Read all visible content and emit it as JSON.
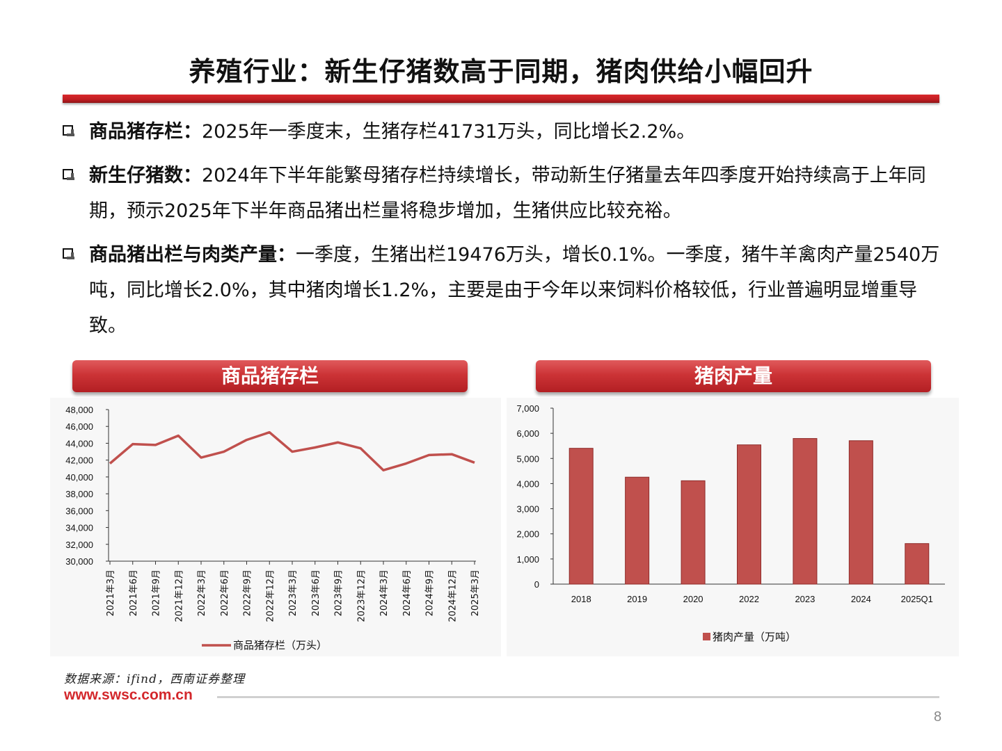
{
  "page": {
    "title": "养殖行业：新生仔猪数高于同期，猪肉供给小幅回升",
    "page_number": "8"
  },
  "bullets": [
    {
      "label": "商品猪存栏：",
      "text": "2025年一季度末，生猪存栏41731万头，同比增长2.2%。"
    },
    {
      "label": "新生仔猪数：",
      "text": "2024年下半年能繁母猪存栏持续增长，带动新生仔猪量去年四季度开始持续高于上年同期，预示2025年下半年商品猪出栏量将稳步增加，生猪供应比较充裕。"
    },
    {
      "label": "商品猪出栏与肉类产量：",
      "text": "一季度，生猪出栏19476万头，增长0.1%。一季度，猪牛羊禽肉产量2540万吨，同比增长2.0%，其中猪肉增长1.2%，主要是由于今年以来饲料价格较低，行业普遍明显增重导致。"
    }
  ],
  "panels": {
    "left_header": "商品猪存栏",
    "right_header": "猪肉产量"
  },
  "footer": {
    "source": "数据来源：ifind，西南证券整理",
    "url": "www.swsc.com.cn"
  },
  "colors": {
    "accent": "#c8252a",
    "series_line": "#c0504d",
    "bar_fill": "#c0504d"
  },
  "chart_data": [
    {
      "type": "line",
      "title": "商品猪存栏",
      "categories": [
        "2021年3月",
        "2021年6月",
        "2021年9月",
        "2021年12月",
        "2022年3月",
        "2022年6月",
        "2022年9月",
        "2022年12月",
        "2023年3月",
        "2023年6月",
        "2023年9月",
        "2023年12月",
        "2024年3月",
        "2024年6月",
        "2024年9月",
        "2024年12月",
        "2025年3月"
      ],
      "series": [
        {
          "name": "商品猪存栏（万头）",
          "values": [
            41600,
            43900,
            43800,
            44900,
            42300,
            43000,
            44400,
            45300,
            43000,
            43500,
            44100,
            43400,
            40800,
            41600,
            42600,
            42700,
            41700
          ]
        }
      ],
      "ylim": [
        30000,
        48000
      ],
      "yticks": [
        30000,
        32000,
        34000,
        36000,
        38000,
        40000,
        42000,
        44000,
        46000,
        48000
      ],
      "ytick_labels": [
        "30,000",
        "32,000",
        "34,000",
        "36,000",
        "38,000",
        "40,000",
        "42,000",
        "44,000",
        "46,000",
        "48,000"
      ],
      "legend": "bottom",
      "grid": false
    },
    {
      "type": "bar",
      "title": "猪肉产量",
      "categories": [
        "2018",
        "2019",
        "2020",
        "2022",
        "2023",
        "2024",
        "2025Q1"
      ],
      "series": [
        {
          "name": "猪肉产量（万吨）",
          "values": [
            5404,
            4255,
            4113,
            5541,
            5794,
            5706,
            1613
          ]
        }
      ],
      "ylim": [
        0,
        7000
      ],
      "yticks": [
        0,
        1000,
        2000,
        3000,
        4000,
        5000,
        6000,
        7000
      ],
      "ytick_labels": [
        "0",
        "1,000",
        "2,000",
        "3,000",
        "4,000",
        "5,000",
        "6,000",
        "7,000"
      ],
      "legend": "bottom",
      "grid": false
    }
  ]
}
